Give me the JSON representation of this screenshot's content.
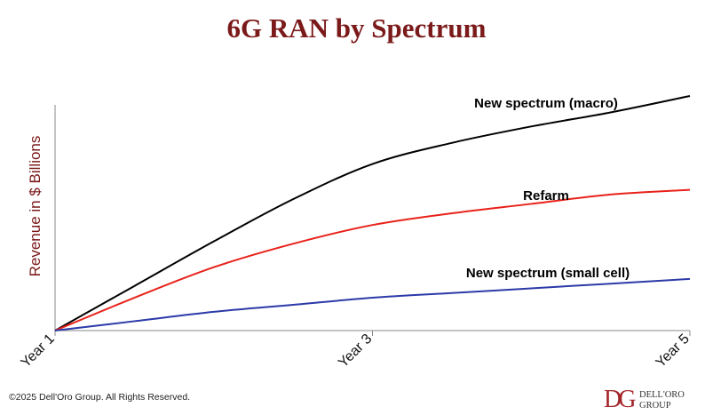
{
  "header": {
    "title": "6G RAN by Spectrum"
  },
  "chart_data": {
    "type": "line",
    "title": "6G RAN by Spectrum",
    "xlabel": "",
    "ylabel": "Revenue in $ Billions",
    "categories": [
      "Year 1",
      "Year 3",
      "Year 5"
    ],
    "x": [
      1,
      1.5,
      2,
      2.5,
      3,
      3.5,
      4,
      4.5,
      5
    ],
    "ylim": [
      0,
      100
    ],
    "grid": false,
    "series": [
      {
        "name": "New spectrum (macro)",
        "color": "#000000",
        "values": [
          0,
          19,
          38,
          56,
          71,
          80,
          87,
          93,
          100
        ]
      },
      {
        "name": "Refarm",
        "color": "#e8221a",
        "values": [
          0,
          14,
          27,
          37,
          45,
          50,
          54,
          58,
          60
        ]
      },
      {
        "name": "New spectrum (small cell)",
        "color": "#2b3aa8",
        "values": [
          0,
          4,
          8,
          11,
          14,
          16,
          18,
          20,
          22
        ]
      }
    ]
  },
  "footer": {
    "copyright": "©2025 Dell'Oro Group. All Rights Reserved.",
    "logo_mark": "DG",
    "logo_line1": "DELL'ORO",
    "logo_line2": "GROUP"
  }
}
